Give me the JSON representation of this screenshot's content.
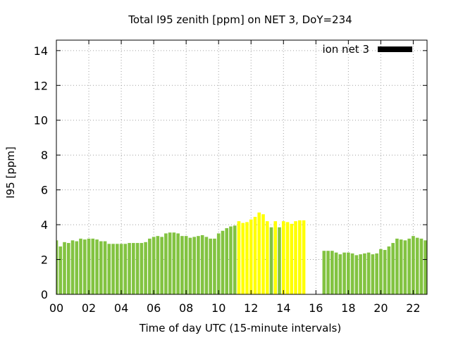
{
  "chart_data": {
    "type": "bar",
    "title": "Total I95 zenith [ppm] on NET 3, DoY=234",
    "xlabel": "Time of day UTC (15-minute intervals)",
    "ylabel": "I95 [ppm]",
    "xlim": [
      0,
      22.85
    ],
    "ylim": [
      0,
      14.6
    ],
    "grid": true,
    "legend": {
      "label": "ion net 3",
      "position": "top-right",
      "swatch_color": "#000000"
    },
    "x_ticks": [
      "00",
      "02",
      "04",
      "06",
      "08",
      "10",
      "12",
      "14",
      "16",
      "18",
      "20",
      "22"
    ],
    "x_tick_values": [
      0,
      2,
      4,
      6,
      8,
      10,
      12,
      14,
      16,
      18,
      20,
      22
    ],
    "y_ticks": [
      "0",
      "2",
      "4",
      "6",
      "8",
      "10",
      "12",
      "14"
    ],
    "y_tick_values": [
      0,
      2,
      4,
      6,
      8,
      10,
      12,
      14
    ],
    "colors": {
      "normal": "#82c341",
      "elevated": "#ffff00"
    },
    "bar_width_hours": 0.2,
    "series": [
      {
        "x": [
          0.0,
          0.25,
          0.5,
          0.75,
          1.0,
          1.25,
          1.5,
          1.75,
          2.0,
          2.25,
          2.5,
          2.75,
          3.0,
          3.25,
          3.5,
          3.75,
          4.0,
          4.25,
          4.5,
          4.75,
          5.0,
          5.25,
          5.5,
          5.75,
          6.0,
          6.25,
          6.5,
          6.75,
          7.0,
          7.25,
          7.5,
          7.75,
          8.0,
          8.25,
          8.5,
          8.75,
          9.0,
          9.25,
          9.5,
          9.75,
          10.0,
          10.25,
          10.5,
          10.75,
          11.0,
          16.5,
          16.75,
          17.0,
          17.25,
          17.5,
          17.75,
          18.0,
          18.25,
          18.5,
          18.75,
          19.0,
          19.25,
          19.5,
          19.75,
          20.0,
          20.25,
          20.5,
          20.75,
          21.0,
          21.25,
          21.5,
          21.75,
          22.0,
          22.25,
          22.5,
          22.75,
          13.25,
          13.75
        ],
        "values": [
          3.1,
          2.75,
          3.0,
          2.95,
          3.1,
          3.05,
          3.2,
          3.15,
          3.2,
          3.2,
          3.15,
          3.05,
          3.05,
          2.9,
          2.9,
          2.9,
          2.9,
          2.9,
          2.95,
          2.95,
          2.95,
          2.95,
          3.0,
          3.2,
          3.3,
          3.35,
          3.3,
          3.5,
          3.55,
          3.55,
          3.5,
          3.35,
          3.35,
          3.25,
          3.3,
          3.35,
          3.4,
          3.3,
          3.2,
          3.2,
          3.5,
          3.65,
          3.8,
          3.9,
          3.95,
          2.5,
          2.5,
          2.5,
          2.4,
          2.3,
          2.4,
          2.4,
          2.35,
          2.25,
          2.3,
          2.35,
          2.4,
          2.3,
          2.35,
          2.6,
          2.55,
          2.75,
          2.95,
          3.2,
          3.15,
          3.1,
          3.2,
          3.35,
          3.25,
          3.2,
          3.1,
          3.85,
          3.85
        ],
        "color": "#82c341"
      },
      {
        "x": [
          11.25,
          11.5,
          11.75,
          12.0,
          12.25,
          12.5,
          12.75,
          13.0,
          13.5,
          14.0,
          14.25,
          14.5,
          14.75,
          15.0,
          15.25
        ],
        "values": [
          4.2,
          4.1,
          4.15,
          4.3,
          4.45,
          4.7,
          4.6,
          4.2,
          4.2,
          4.2,
          4.15,
          4.05,
          4.2,
          4.25,
          4.25
        ],
        "color": "#ffff00"
      }
    ]
  }
}
